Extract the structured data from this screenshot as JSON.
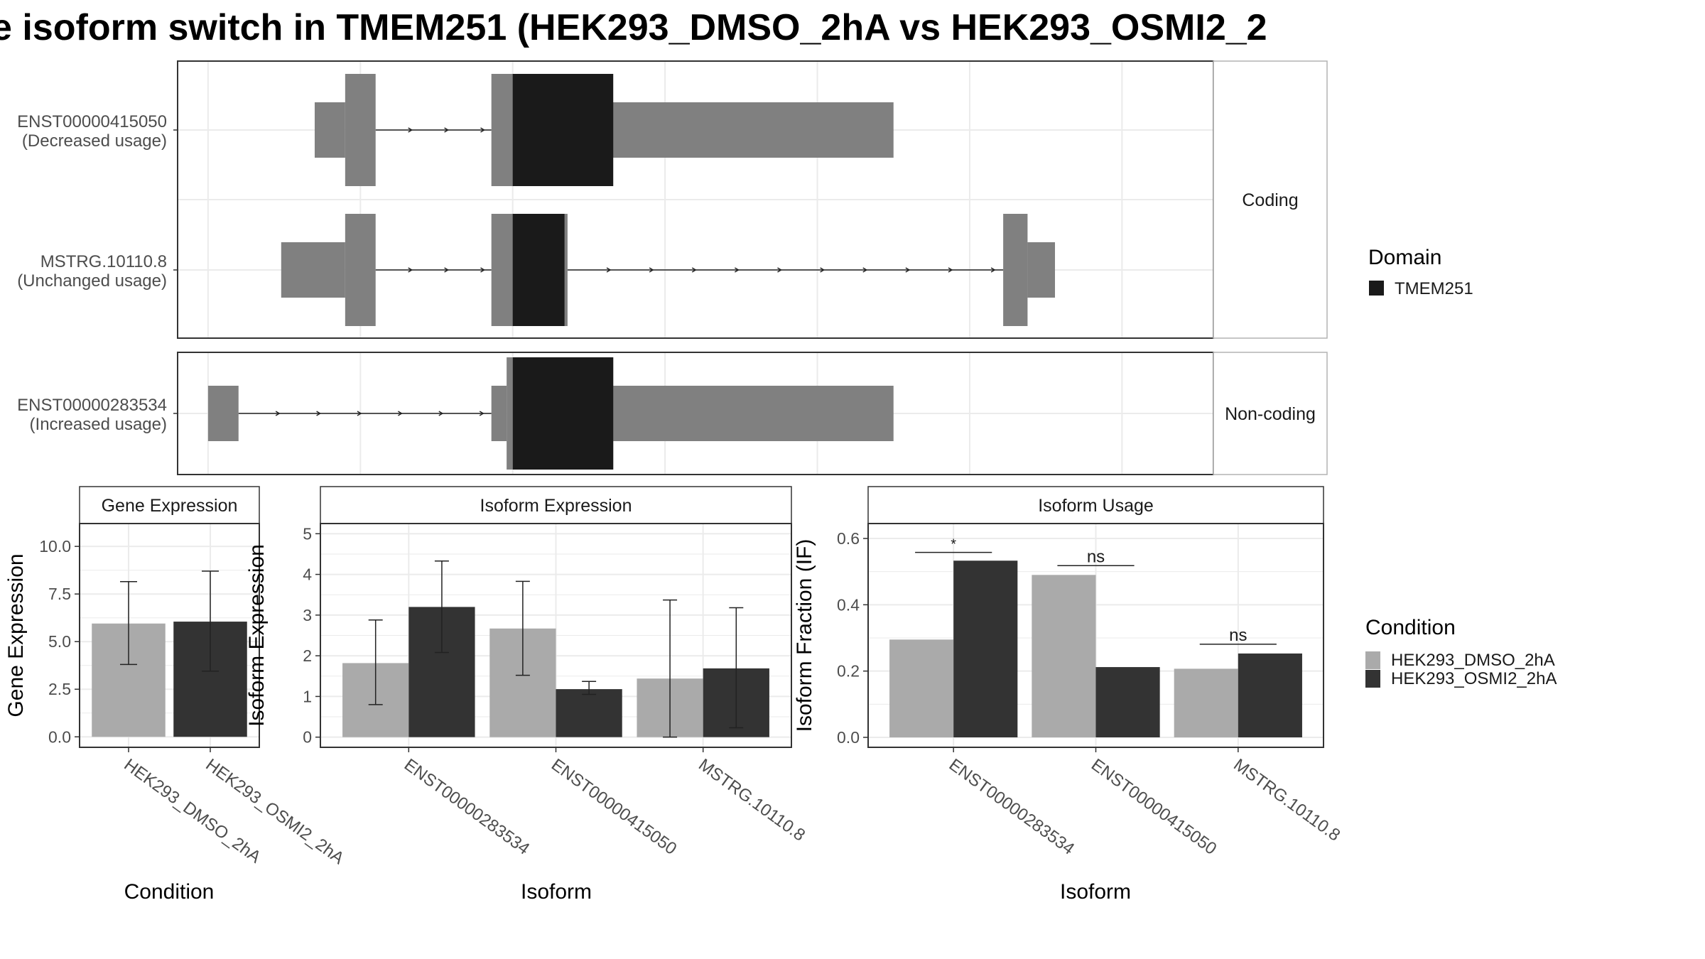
{
  "title": "e isoform switch in TMEM251 (HEK293_DMSO_2hA vs HEK293_OSMI2_2",
  "colors": {
    "exon": "#808080",
    "domain": "#1a1a1a",
    "cond1": "#aaaaaa",
    "cond2": "#333333",
    "grid": "#ebebeb",
    "panel_border": "#333333",
    "strip_bg": "#ffffff"
  },
  "chart_data": [
    {
      "type": "gene-structure",
      "groups": [
        {
          "label": "Coding",
          "transcripts": [
            {
              "id": "ENST00000415050",
              "usage": "(Decreased usage)",
              "exons": [
                [
                  -1.5,
                  -0.5
                ],
                [
                  7.5,
                  17.5
                ]
              ],
              "cds": [
                [
                  -0.5,
                  0.5
                ],
                [
                  4.3,
                  7.5
                ]
              ],
              "domains": [
                [
                  5.0,
                  8.3
                ]
              ],
              "introns": [
                [
                  0.5,
                  4.3
                ]
              ]
            },
            {
              "id": "MSTRG.10110.8",
              "usage": "(Unchanged usage)",
              "exons": [
                [
                  -2.6,
                  -0.5
                ],
                [
                  21.9,
                  22.8
                ]
              ],
              "cds": [
                [
                  -0.5,
                  0.5
                ],
                [
                  4.3,
                  6.8
                ],
                [
                  21.1,
                  21.9
                ]
              ],
              "domains": [
                [
                  5.0,
                  6.7
                ]
              ],
              "introns": [
                [
                  0.5,
                  4.3
                ],
                [
                  6.8,
                  21.1
                ]
              ]
            }
          ]
        },
        {
          "label": "Non-coding",
          "transcripts": [
            {
              "id": "ENST00000283534",
              "usage": "(Increased usage)",
              "exons": [
                [
                  -5.0,
                  -4.0
                ],
                [
                  4.3,
                  4.8
                ],
                [
                  7.5,
                  17.5
                ]
              ],
              "cds": [
                [
                  4.8,
                  5.0
                ],
                [
                  8.3,
                  7.5
                ]
              ],
              "domains": [
                [
                  5.0,
                  8.3
                ]
              ],
              "introns": [
                [
                  -4.0,
                  4.3
                ]
              ]
            }
          ]
        }
      ],
      "legend": {
        "title": "Domain",
        "items": [
          "TMEM251"
        ]
      }
    },
    {
      "type": "bar",
      "strip": "Gene Expression",
      "xlabel": "Condition",
      "ylabel": "Gene Expression",
      "ylim": [
        -0.55,
        11.2
      ],
      "yticks": [
        "0.0",
        "2.5",
        "5.0",
        "7.5",
        "10.0"
      ],
      "categories": [
        "HEK293_DMSO_2hA",
        "HEK293_OSMI2_2hA"
      ],
      "values": [
        5.95,
        6.05
      ],
      "error_low": [
        3.8,
        3.45
      ],
      "error_high": [
        8.15,
        8.7
      ]
    },
    {
      "type": "bar",
      "strip": "Isoform Expression",
      "xlabel": "Isoform",
      "ylabel": "Isoform Expression",
      "ylim": [
        -0.25,
        5.25
      ],
      "yticks": [
        "0",
        "1",
        "2",
        "3",
        "4",
        "5"
      ],
      "categories": [
        "ENST00000283534",
        "ENST00000415050",
        "MSTRG.10110.8"
      ],
      "series": [
        {
          "name": "HEK293_DMSO_2hA",
          "values": [
            1.82,
            2.67,
            1.44
          ],
          "error_low": [
            0.8,
            1.52,
            0.0
          ],
          "error_high": [
            2.88,
            3.83,
            3.37
          ]
        },
        {
          "name": "HEK293_OSMI2_2hA",
          "values": [
            3.2,
            1.18,
            1.69
          ],
          "error_low": [
            2.08,
            1.05,
            0.23
          ],
          "error_high": [
            4.33,
            1.37,
            3.18
          ]
        }
      ]
    },
    {
      "type": "bar",
      "strip": "Isoform Usage",
      "xlabel": "Isoform",
      "ylabel": "Isoform Fraction (IF)",
      "ylim": [
        -0.03,
        0.645
      ],
      "yticks": [
        "0.0",
        "0.2",
        "0.4",
        "0.6"
      ],
      "categories": [
        "ENST00000283534",
        "ENST00000415050",
        "MSTRG.10110.8"
      ],
      "series": [
        {
          "name": "HEK293_DMSO_2hA",
          "values": [
            0.295,
            0.49,
            0.207
          ]
        },
        {
          "name": "HEK293_OSMI2_2hA",
          "values": [
            0.533,
            0.212,
            0.253
          ]
        }
      ],
      "significance": [
        {
          "label": "*",
          "y": 0.558
        },
        {
          "label": "ns",
          "y": 0.518
        },
        {
          "label": "ns",
          "y": 0.281
        }
      ]
    }
  ],
  "legend_condition": {
    "title": "Condition",
    "items": [
      "HEK293_DMSO_2hA",
      "HEK293_OSMI2_2hA"
    ]
  }
}
